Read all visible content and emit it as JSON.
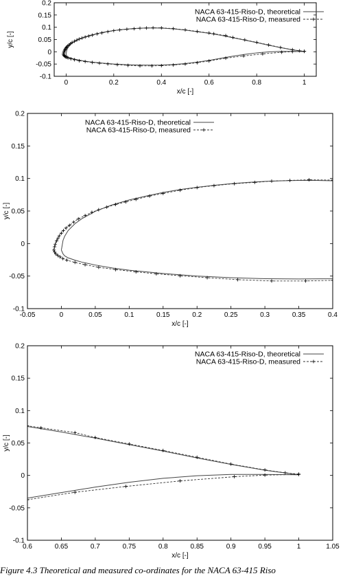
{
  "caption": "Figure 4.3 Theoretical and measured co-ordinates for the NACA 63-415 Riso",
  "series_names": [
    "NACA 63-415-Riso-D, theoretical",
    "NACA 63-415-Riso-D, measured"
  ],
  "chart_data": [
    {
      "type": "line",
      "xlabel": "x/c [-]",
      "ylabel": "y/c [-]",
      "xlim": [
        -0.05,
        1.05
      ],
      "ylim": [
        -0.1,
        0.2
      ],
      "xticks": [
        0,
        0.2,
        0.4,
        0.6,
        0.8,
        1
      ],
      "yticks": [
        -0.1,
        -0.05,
        0,
        0.05,
        0.1,
        0.15,
        0.2
      ],
      "xticklabels": [
        "0",
        "0.2",
        "0.4",
        "0.6",
        "0.8",
        "1"
      ],
      "yticklabels": [
        "-0.1",
        "-0.05",
        "0",
        "0.05",
        "0.1",
        "0.15",
        "0.2"
      ],
      "legend": "top-right",
      "grid": false
    },
    {
      "type": "line",
      "xlabel": "x/c [-]",
      "ylabel": "y/c [-]",
      "xlim": [
        -0.05,
        0.4
      ],
      "ylim": [
        -0.1,
        0.2
      ],
      "xticks": [
        -0.05,
        0,
        0.05,
        0.1,
        0.15,
        0.2,
        0.25,
        0.3,
        0.35,
        0.4
      ],
      "yticks": [
        -0.1,
        -0.05,
        0,
        0.05,
        0.1,
        0.15,
        0.2
      ],
      "xticklabels": [
        "-0.05",
        "0",
        "0.05",
        "0.1",
        "0.15",
        "0.2",
        "0.25",
        "0.3",
        "0.35",
        "0.4"
      ],
      "yticklabels": [
        "-0.1",
        "-0.05",
        "0",
        "0.05",
        "0.1",
        "0.15",
        "0.2"
      ],
      "legend": "top-left",
      "grid": false
    },
    {
      "type": "line",
      "xlabel": "x/c [-]",
      "ylabel": "y/c [-]",
      "xlim": [
        0.6,
        1.05
      ],
      "ylim": [
        -0.1,
        0.2
      ],
      "xticks": [
        0.6,
        0.65,
        0.7,
        0.75,
        0.8,
        0.85,
        0.9,
        0.95,
        1,
        1.05
      ],
      "yticks": [
        -0.1,
        -0.05,
        0,
        0.05,
        0.1,
        0.15,
        0.2
      ],
      "xticklabels": [
        "0.6",
        "0.65",
        "0.7",
        "0.75",
        "0.8",
        "0.85",
        "0.9",
        "0.95",
        "1",
        "1.05"
      ],
      "yticklabels": [
        "-0.1",
        "-0.05",
        "0",
        "0.05",
        "0.1",
        "0.15",
        "0.2"
      ],
      "legend": "top-right",
      "grid": false
    }
  ],
  "series": [
    {
      "name": "NACA 63-415-Riso-D, theoretical",
      "style": "solid",
      "upper": {
        "x": [
          0,
          0.0025,
          0.005,
          0.01,
          0.02,
          0.03,
          0.05,
          0.075,
          0.1,
          0.125,
          0.15,
          0.175,
          0.2,
          0.225,
          0.25,
          0.275,
          0.3,
          0.325,
          0.35,
          0.375,
          0.4,
          0.45,
          0.5,
          0.55,
          0.6,
          0.65,
          0.7,
          0.75,
          0.8,
          0.85,
          0.9,
          0.95,
          1.0
        ],
        "y": [
          -0.01,
          0.005,
          0.0115,
          0.02,
          0.0305,
          0.038,
          0.0495,
          0.0595,
          0.067,
          0.073,
          0.0785,
          0.083,
          0.0865,
          0.0895,
          0.092,
          0.094,
          0.0955,
          0.0965,
          0.097,
          0.097,
          0.0965,
          0.0935,
          0.0885,
          0.082,
          0.0755,
          0.067,
          0.0575,
          0.0475,
          0.0375,
          0.027,
          0.017,
          0.008,
          0.001
        ]
      },
      "lower": {
        "x": [
          0,
          0.0025,
          0.005,
          0.01,
          0.02,
          0.03,
          0.05,
          0.075,
          0.1,
          0.125,
          0.15,
          0.2,
          0.25,
          0.3,
          0.35,
          0.4,
          0.45,
          0.5,
          0.55,
          0.6,
          0.65,
          0.7,
          0.75,
          0.8,
          0.85,
          0.9,
          0.95,
          1.0
        ],
        "y": [
          -0.01,
          -0.016,
          -0.019,
          -0.022,
          -0.0255,
          -0.0285,
          -0.033,
          -0.0375,
          -0.041,
          -0.0435,
          -0.046,
          -0.05,
          -0.0525,
          -0.054,
          -0.0545,
          -0.054,
          -0.052,
          -0.048,
          -0.042,
          -0.035,
          -0.0265,
          -0.018,
          -0.0105,
          -0.0045,
          -0.0005,
          0.0015,
          0.0015,
          0.001
        ]
      }
    },
    {
      "name": "NACA 63-415-Riso-D, measured",
      "style": "dashed-with-plus-markers",
      "upper": {
        "x": [
          -0.011,
          -0.01,
          -0.009,
          -0.007,
          -0.005,
          -0.003,
          0.0,
          0.003,
          0.007,
          0.012,
          0.018,
          0.025,
          0.035,
          0.045,
          0.055,
          0.067,
          0.08,
          0.095,
          0.11,
          0.13,
          0.15,
          0.175,
          0.2,
          0.225,
          0.255,
          0.285,
          0.31,
          0.337,
          0.365,
          0.4,
          0.45,
          0.5,
          0.55,
          0.6,
          0.62,
          0.67,
          0.7,
          0.75,
          0.8,
          0.85,
          0.9,
          0.95,
          0.98,
          1.0
        ],
        "y": [
          -0.01,
          -0.005,
          -0.001,
          0.004,
          0.008,
          0.012,
          0.016,
          0.02,
          0.024,
          0.028,
          0.033,
          0.038,
          0.043,
          0.048,
          0.052,
          0.056,
          0.06,
          0.064,
          0.068,
          0.073,
          0.077,
          0.082,
          0.086,
          0.089,
          0.092,
          0.094,
          0.096,
          0.097,
          0.098,
          0.0975,
          0.0945,
          0.0895,
          0.083,
          0.0765,
          0.0735,
          0.066,
          0.0585,
          0.0485,
          0.0385,
          0.028,
          0.0175,
          0.0085,
          0.004,
          0.002
        ]
      },
      "lower": {
        "x": [
          -0.01,
          -0.008,
          -0.005,
          -0.002,
          0.002,
          0.008,
          0.02,
          0.035,
          0.055,
          0.08,
          0.11,
          0.14,
          0.175,
          0.215,
          0.26,
          0.31,
          0.36,
          0.4,
          0.45,
          0.5,
          0.55,
          0.6,
          0.67,
          0.745,
          0.825,
          0.905,
          0.95,
          1.0
        ],
        "y": [
          -0.013,
          -0.016,
          -0.0185,
          -0.0205,
          -0.023,
          -0.0255,
          -0.029,
          -0.0325,
          -0.0365,
          -0.04,
          -0.0435,
          -0.0465,
          -0.0495,
          -0.0525,
          -0.0555,
          -0.0575,
          -0.0575,
          -0.0565,
          -0.054,
          -0.05,
          -0.0445,
          -0.0375,
          -0.026,
          -0.017,
          -0.0085,
          -0.002,
          0.0005,
          0.0015
        ]
      }
    }
  ]
}
